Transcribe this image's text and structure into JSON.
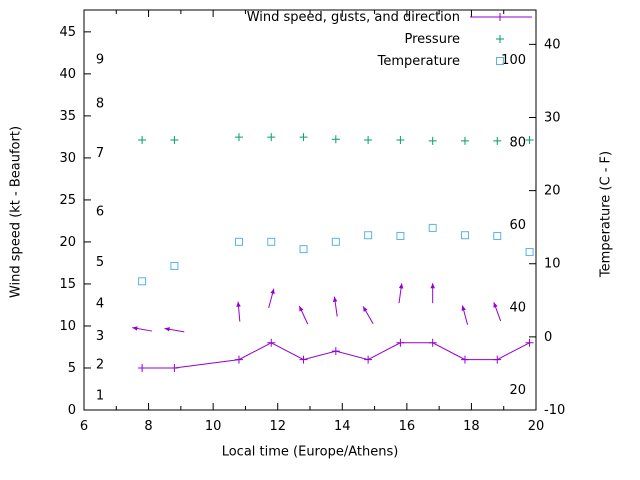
{
  "chart_data": {
    "type": "line",
    "title": "",
    "xlabel": "Local time (Europe/Athens)",
    "ylabel_left": "Wind speed (kt - Beaufort)",
    "ylabel_right": "Temperature (C - F)",
    "x_range": [
      6,
      20
    ],
    "x_ticks": [
      6,
      8,
      10,
      12,
      14,
      16,
      18,
      20
    ],
    "kt_axis": {
      "range": [
        0,
        47.6
      ],
      "ticks": [
        0,
        5,
        10,
        15,
        20,
        25,
        30,
        35,
        40,
        45
      ]
    },
    "temp_axis": {
      "range": [
        -10,
        44.7
      ],
      "ticks": [
        40,
        30,
        20,
        10,
        0,
        -10
      ]
    },
    "pressure_axis": {
      "range": [
        15.2,
        112.1
      ],
      "labels": [
        {
          "label": "100",
          "v": 100
        },
        {
          "label": "80",
          "v": 80
        },
        {
          "label": "60",
          "v": 60
        },
        {
          "label": "40",
          "v": 40
        },
        {
          "label": "20",
          "v": 20
        }
      ]
    },
    "beaufort_labels": [
      {
        "label": "1",
        "kt": 1.7
      },
      {
        "label": "2",
        "kt": 5.4
      },
      {
        "label": "3",
        "kt": 8.8
      },
      {
        "label": "4",
        "kt": 12.7
      },
      {
        "label": "5",
        "kt": 17.6
      },
      {
        "label": "6",
        "kt": 23.6
      },
      {
        "label": "7",
        "kt": 30.6
      },
      {
        "label": "8",
        "kt": 36.5
      },
      {
        "label": "9",
        "kt": 41.7
      }
    ],
    "legend": [
      {
        "label": "Wind speed, gusts, and direction",
        "color": "#9400d3",
        "marker": "plus-line"
      },
      {
        "label": "Pressure",
        "color": "#009e73",
        "marker": "plus"
      },
      {
        "label": "Temperature",
        "color": "#56b4e9",
        "marker": "square"
      }
    ],
    "wind": {
      "x": [
        7.8,
        8.8,
        10.8,
        11.8,
        12.8,
        13.8,
        14.8,
        15.8,
        16.8,
        17.8,
        18.8,
        19.8
      ],
      "kt": [
        5,
        5,
        6,
        8,
        6,
        7,
        6,
        8,
        8,
        6,
        6,
        8
      ]
    },
    "arrows": [
      {
        "x": 7.8,
        "kt": 9.6,
        "angle": -80
      },
      {
        "x": 8.8,
        "kt": 9.5,
        "angle": -80
      },
      {
        "x": 10.8,
        "kt": 11.7,
        "angle": -5
      },
      {
        "x": 11.8,
        "kt": 13.3,
        "angle": 15
      },
      {
        "x": 12.8,
        "kt": 11.3,
        "angle": -25
      },
      {
        "x": 13.8,
        "kt": 12.3,
        "angle": -8
      },
      {
        "x": 14.8,
        "kt": 11.3,
        "angle": -30
      },
      {
        "x": 15.8,
        "kt": 13.9,
        "angle": 8
      },
      {
        "x": 16.8,
        "kt": 13.9,
        "angle": 0
      },
      {
        "x": 17.8,
        "kt": 11.3,
        "angle": -15
      },
      {
        "x": 18.8,
        "kt": 11.7,
        "angle": -20
      }
    ],
    "pressure": {
      "x": [
        7.8,
        8.8,
        10.8,
        11.8,
        12.8,
        13.8,
        14.8,
        15.8,
        16.8,
        17.8,
        18.8,
        19.8
      ],
      "v": [
        80.6,
        80.6,
        81.3,
        81.3,
        81.3,
        80.8,
        80.6,
        80.6,
        80.4,
        80.4,
        80.4,
        80.6
      ]
    },
    "temperature": {
      "x": [
        7.8,
        8.8,
        10.8,
        11.8,
        12.8,
        13.8,
        14.8,
        15.8,
        16.8,
        17.8,
        18.8,
        19.8
      ],
      "c": [
        7.6,
        9.7,
        13.0,
        13.0,
        12.0,
        13.0,
        13.9,
        13.8,
        14.9,
        13.9,
        13.8,
        11.6
      ]
    }
  }
}
